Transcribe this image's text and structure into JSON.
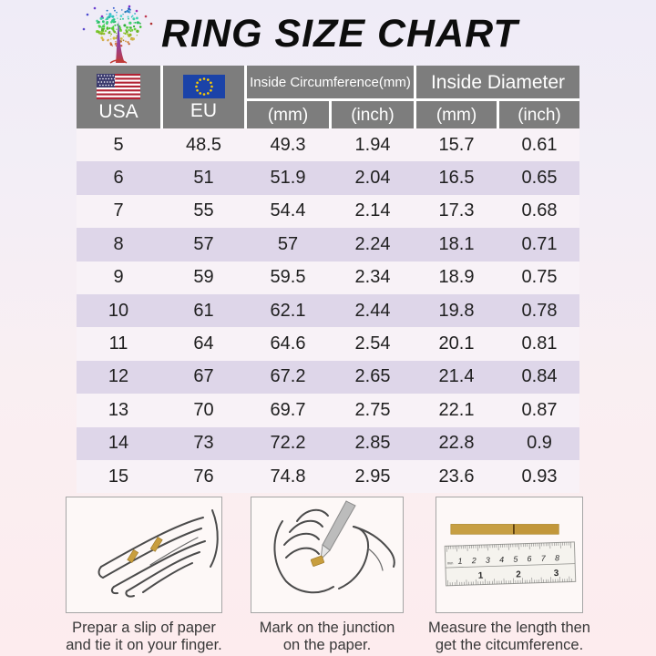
{
  "page": {
    "title": "RING SIZE CHART"
  },
  "logo": {
    "icon": "tree-logo"
  },
  "table": {
    "headers": {
      "usa": "USA",
      "eu": "EU",
      "usa_flag_icon": "us-flag-icon",
      "eu_flag_icon": "eu-flag-icon",
      "circumference": "Inside Circumference(mm)",
      "diameter": "Inside Diameter",
      "sub": [
        "(mm)",
        "(inch)",
        "(mm)",
        "(inch)"
      ]
    },
    "rows": [
      [
        "5",
        "48.5",
        "49.3",
        "1.94",
        "15.7",
        "0.61"
      ],
      [
        "6",
        "51",
        "51.9",
        "2.04",
        "16.5",
        "0.65"
      ],
      [
        "7",
        "55",
        "54.4",
        "2.14",
        "17.3",
        "0.68"
      ],
      [
        "8",
        "57",
        "57",
        "2.24",
        "18.1",
        "0.71"
      ],
      [
        "9",
        "59",
        "59.5",
        "2.34",
        "18.9",
        "0.75"
      ],
      [
        "10",
        "61",
        "62.1",
        "2.44",
        "19.8",
        "0.78"
      ],
      [
        "11",
        "64",
        "64.6",
        "2.54",
        "20.1",
        "0.81"
      ],
      [
        "12",
        "67",
        "67.2",
        "2.65",
        "21.4",
        "0.84"
      ],
      [
        "13",
        "70",
        "69.7",
        "2.75",
        "22.1",
        "0.87"
      ],
      [
        "14",
        "73",
        "72.2",
        "2.85",
        "22.8",
        "0.9"
      ],
      [
        "15",
        "76",
        "74.8",
        "2.95",
        "23.6",
        "0.93"
      ]
    ]
  },
  "instructions": [
    {
      "illustration": "hand-with-paper-strip",
      "caption_line1": "Prepar a slip of paper",
      "caption_line2": "and tie it on your finger."
    },
    {
      "illustration": "hands-marking-with-pen",
      "caption_line1": "Mark on the junction",
      "caption_line2": "on the paper."
    },
    {
      "illustration": "paper-strip-and-ruler",
      "caption_line1": "Measure  the length then",
      "caption_line2": "get the citcumference.",
      "ruler_unit": "mm",
      "ruler_cm_numbers": [
        "1",
        "2",
        "3",
        "4",
        "5",
        "6",
        "7",
        "8"
      ],
      "ruler_inch_numbers": [
        "1",
        "2",
        "3"
      ]
    }
  ],
  "chart_data": {
    "type": "table",
    "title": "RING SIZE CHART",
    "columns": [
      "USA",
      "EU",
      "Inside Circumference (mm)",
      "Inside Circumference (inch)",
      "Inside Diameter (mm)",
      "Inside Diameter (inch)"
    ],
    "rows": [
      [
        5,
        48.5,
        49.3,
        1.94,
        15.7,
        0.61
      ],
      [
        6,
        51,
        51.9,
        2.04,
        16.5,
        0.65
      ],
      [
        7,
        55,
        54.4,
        2.14,
        17.3,
        0.68
      ],
      [
        8,
        57,
        57,
        2.24,
        18.1,
        0.71
      ],
      [
        9,
        59,
        59.5,
        2.34,
        18.9,
        0.75
      ],
      [
        10,
        61,
        62.1,
        2.44,
        19.8,
        0.78
      ],
      [
        11,
        64,
        64.6,
        2.54,
        20.1,
        0.81
      ],
      [
        12,
        67,
        67.2,
        2.65,
        21.4,
        0.84
      ],
      [
        13,
        70,
        69.7,
        2.75,
        22.1,
        0.87
      ],
      [
        14,
        73,
        72.2,
        2.85,
        22.8,
        0.9
      ],
      [
        15,
        76,
        74.8,
        2.95,
        23.6,
        0.93
      ]
    ]
  },
  "colors": {
    "header_gray": "#7d7d7d",
    "row_light": "#f8f2f7",
    "row_alt_lavender": "#ded6e9",
    "background_top": "#efecf7",
    "background_bottom": "#fdecee",
    "gold_strip": "#c79f43",
    "us_flag_red": "#b22234",
    "us_flag_blue": "#3c3b6e",
    "eu_flag_blue": "#1b43a8",
    "eu_star_gold": "#ffcc00"
  }
}
